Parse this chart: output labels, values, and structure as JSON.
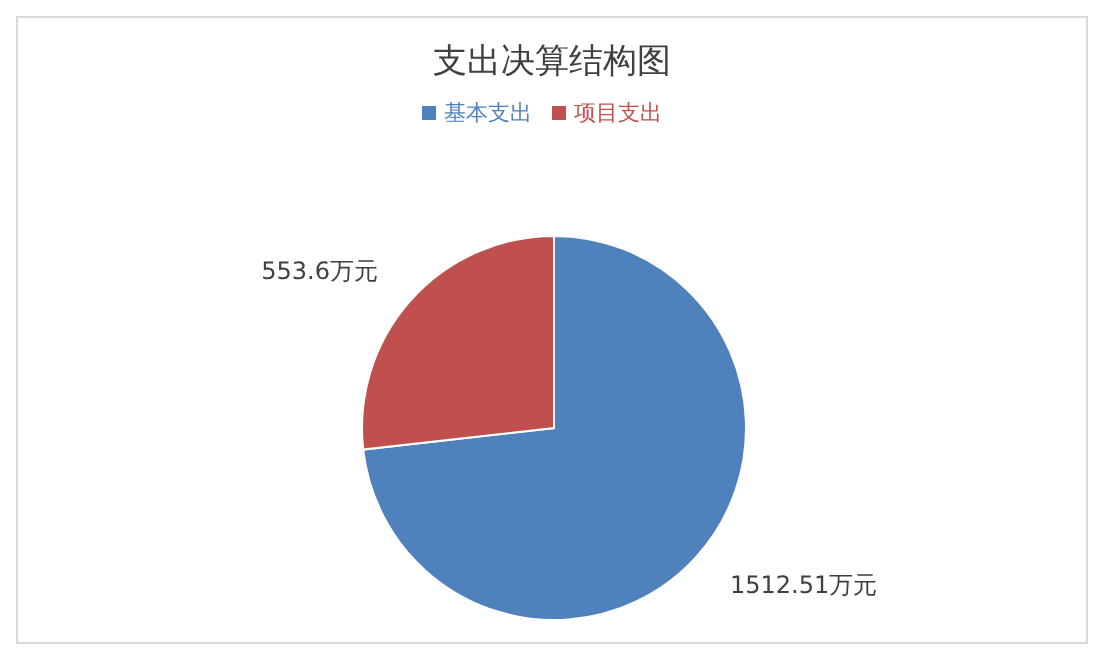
{
  "chart_data": {
    "type": "pie",
    "title": "支出决算结构图",
    "categories": [
      "基本支出",
      "项目支出"
    ],
    "values": [
      1512.51,
      553.6
    ],
    "value_labels": [
      "1512.51万元",
      "553.6万元"
    ],
    "colors": [
      "#4f81bd",
      "#c0504d"
    ],
    "legend": "top"
  }
}
